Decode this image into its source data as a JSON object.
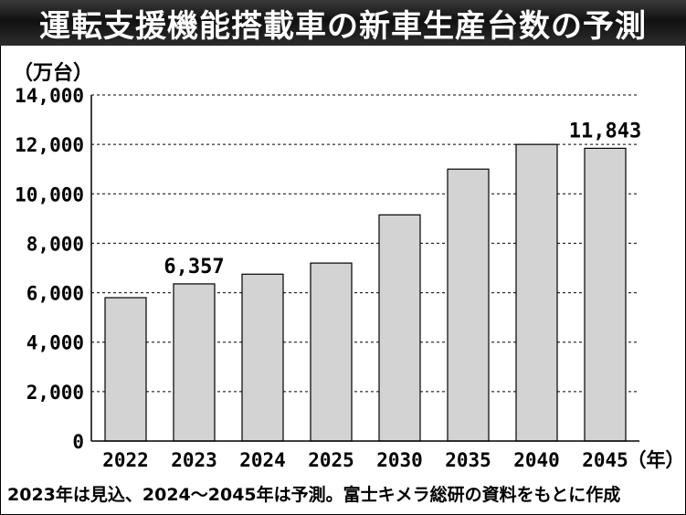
{
  "title": "運転支援機能搭載車の新車生産台数の予測",
  "footnote": "2023年は見込、2024～2045年は予測。富士キメラ総研の資料をもとに作成",
  "colors": {
    "bar_fill": "#d3d3d3",
    "bar_stroke": "#000000",
    "title_bg": "#1a1a1a",
    "title_text": "#ffffff"
  },
  "chart_data": {
    "type": "bar",
    "ylabel": "（万台）",
    "xunit": "（年）",
    "ylim": [
      0,
      14000
    ],
    "yticks": [
      "0",
      "2,000",
      "4,000",
      "6,000",
      "8,000",
      "10,000",
      "12,000",
      "14,000"
    ],
    "ytick_values": [
      0,
      2000,
      4000,
      6000,
      8000,
      10000,
      12000,
      14000
    ],
    "grid": "horizontal dashed",
    "categories": [
      "2022",
      "2023",
      "2024",
      "2025",
      "2030",
      "2035",
      "2040",
      "2045"
    ],
    "values": [
      5800,
      6357,
      6750,
      7200,
      9150,
      11000,
      12000,
      11843
    ],
    "data_labels": [
      {
        "index": 1,
        "text": "6,357"
      },
      {
        "index": 7,
        "text": "11,843"
      }
    ]
  }
}
